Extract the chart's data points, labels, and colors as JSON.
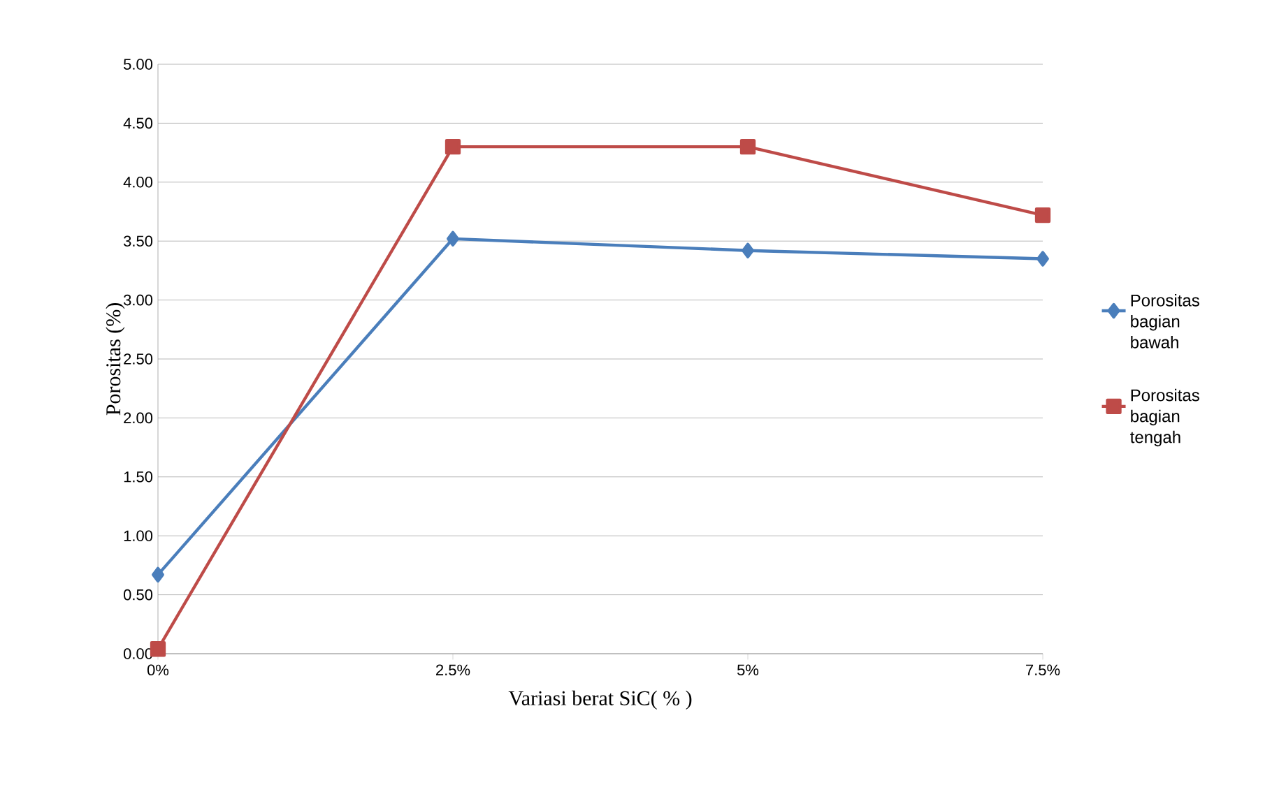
{
  "chart_data": {
    "type": "line",
    "xlabel": "Variasi berat SiC( % )",
    "ylabel": "Porositas (%)",
    "categories": [
      "0%",
      "2.5%",
      "5%",
      "7.5%"
    ],
    "series": [
      {
        "name": "Porositas bagian bawah",
        "color": "#4a7ebb",
        "marker": "diamond",
        "values": [
          0.67,
          3.52,
          3.42,
          3.35
        ]
      },
      {
        "name": "Porositas bagian tengah",
        "color": "#be4b48",
        "marker": "square",
        "values": [
          0.04,
          4.3,
          4.3,
          3.72
        ]
      }
    ],
    "ylim": [
      0,
      5
    ],
    "yticks": [
      {
        "value": 0,
        "label": "0.00"
      },
      {
        "value": 0.5,
        "label": "0.50"
      },
      {
        "value": 1,
        "label": "1.00"
      },
      {
        "value": 1.5,
        "label": "1.50"
      },
      {
        "value": 2,
        "label": "2.00"
      },
      {
        "value": 2.5,
        "label": "2.50"
      },
      {
        "value": 3,
        "label": "3.00"
      },
      {
        "value": 3.5,
        "label": "3.50"
      },
      {
        "value": 4,
        "label": "4.00"
      },
      {
        "value": 4.5,
        "label": "4.50"
      },
      {
        "value": 5,
        "label": "5.00"
      }
    ],
    "grid": "y",
    "legend": "right",
    "line_style": "solid"
  }
}
